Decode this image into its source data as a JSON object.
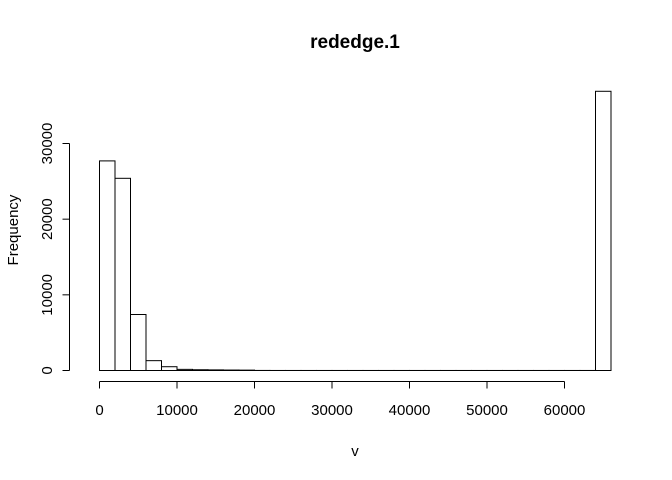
{
  "chart_data": {
    "type": "bar",
    "title": "rededge.1",
    "xlabel": "v",
    "ylabel": "Frequency",
    "xlim": [
      0,
      66000
    ],
    "ylim": [
      0,
      37000
    ],
    "x_ticks": [
      0,
      10000,
      20000,
      30000,
      40000,
      50000,
      60000
    ],
    "x_tick_labels": [
      "0",
      "10000",
      "20000",
      "30000",
      "40000",
      "50000",
      "60000"
    ],
    "y_ticks": [
      0,
      10000,
      20000,
      30000
    ],
    "y_tick_labels": [
      "0",
      "10000",
      "20000",
      "30000"
    ],
    "grid": false,
    "bins": [
      {
        "start": 0,
        "end": 2000,
        "value": 27700
      },
      {
        "start": 2000,
        "end": 4000,
        "value": 25400
      },
      {
        "start": 4000,
        "end": 6000,
        "value": 7400
      },
      {
        "start": 6000,
        "end": 8000,
        "value": 1300
      },
      {
        "start": 8000,
        "end": 10000,
        "value": 500
      },
      {
        "start": 10000,
        "end": 12000,
        "value": 150
      },
      {
        "start": 12000,
        "end": 14000,
        "value": 100
      },
      {
        "start": 14000,
        "end": 16000,
        "value": 80
      },
      {
        "start": 16000,
        "end": 18000,
        "value": 60
      },
      {
        "start": 18000,
        "end": 20000,
        "value": 50
      },
      {
        "start": 20000,
        "end": 22000,
        "value": 10
      },
      {
        "start": 22000,
        "end": 24000,
        "value": 5
      },
      {
        "start": 24000,
        "end": 26000,
        "value": 5
      },
      {
        "start": 26000,
        "end": 28000,
        "value": 5
      },
      {
        "start": 28000,
        "end": 30000,
        "value": 5
      },
      {
        "start": 30000,
        "end": 32000,
        "value": 5
      },
      {
        "start": 32000,
        "end": 34000,
        "value": 5
      },
      {
        "start": 34000,
        "end": 36000,
        "value": 5
      },
      {
        "start": 36000,
        "end": 38000,
        "value": 5
      },
      {
        "start": 38000,
        "end": 40000,
        "value": 5
      },
      {
        "start": 40000,
        "end": 42000,
        "value": 5
      },
      {
        "start": 42000,
        "end": 44000,
        "value": 5
      },
      {
        "start": 44000,
        "end": 46000,
        "value": 5
      },
      {
        "start": 46000,
        "end": 48000,
        "value": 5
      },
      {
        "start": 48000,
        "end": 50000,
        "value": 5
      },
      {
        "start": 50000,
        "end": 52000,
        "value": 5
      },
      {
        "start": 52000,
        "end": 54000,
        "value": 5
      },
      {
        "start": 54000,
        "end": 56000,
        "value": 5
      },
      {
        "start": 56000,
        "end": 58000,
        "value": 5
      },
      {
        "start": 58000,
        "end": 60000,
        "value": 5
      },
      {
        "start": 60000,
        "end": 62000,
        "value": 5
      },
      {
        "start": 62000,
        "end": 64000,
        "value": 5
      },
      {
        "start": 64000,
        "end": 66000,
        "value": 36900
      }
    ]
  }
}
